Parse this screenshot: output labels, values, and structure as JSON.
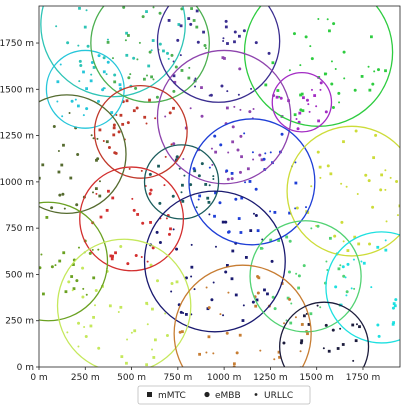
{
  "chart_data": {
    "type": "scatter",
    "title": "",
    "xlabel": "",
    "ylabel": "",
    "xlim": [
      0,
      1950
    ],
    "ylim": [
      0,
      1950
    ],
    "x_ticks": [
      {
        "value": 0,
        "label": "0 m"
      },
      {
        "value": 250,
        "label": "250 m"
      },
      {
        "value": 500,
        "label": "500 m"
      },
      {
        "value": 750,
        "label": "750 m"
      },
      {
        "value": 1000,
        "label": "1000 m"
      },
      {
        "value": 1250,
        "label": "1250 m"
      },
      {
        "value": 1500,
        "label": "1500 m"
      },
      {
        "value": 1750,
        "label": "1750 m"
      }
    ],
    "y_ticks": [
      {
        "value": 0,
        "label": "0 m"
      },
      {
        "value": 250,
        "label": "250 m"
      },
      {
        "value": 500,
        "label": "500 m"
      },
      {
        "value": 750,
        "label": "750 m"
      },
      {
        "value": 1000,
        "label": "1000 m"
      },
      {
        "value": 1250,
        "label": "1250 m"
      },
      {
        "value": 1500,
        "label": "1500 m"
      },
      {
        "value": 1750,
        "label": "1750 m"
      }
    ],
    "grid": false,
    "legend": {
      "placement": "bottom-center",
      "entries": [
        {
          "label": "mMTC",
          "marker": "square"
        },
        {
          "label": "eMBB",
          "marker": "circle"
        },
        {
          "label": "URLLC",
          "marker": "dot"
        }
      ]
    },
    "cells": [
      {
        "cx": 400,
        "cy": 1850,
        "r": 390,
        "color": "#2ec4b6"
      },
      {
        "cx": 250,
        "cy": 1500,
        "r": 210,
        "color": "#26c6da"
      },
      {
        "cx": 600,
        "cy": 1750,
        "r": 320,
        "color": "#4caf50"
      },
      {
        "cx": 970,
        "cy": 1760,
        "r": 330,
        "color": "#3a2d8f"
      },
      {
        "cx": 1510,
        "cy": 1700,
        "r": 400,
        "color": "#2ecc40"
      },
      {
        "cx": 1420,
        "cy": 1430,
        "r": 160,
        "color": "#a32cc4"
      },
      {
        "cx": 1000,
        "cy": 1350,
        "r": 360,
        "color": "#8e44ad"
      },
      {
        "cx": 550,
        "cy": 1270,
        "r": 250,
        "color": "#c0392b"
      },
      {
        "cx": 150,
        "cy": 1150,
        "r": 320,
        "color": "#556b2f"
      },
      {
        "cx": 770,
        "cy": 1000,
        "r": 200,
        "color": "#1a5c5c"
      },
      {
        "cx": 1150,
        "cy": 1000,
        "r": 340,
        "color": "#1f3fd6"
      },
      {
        "cx": 1690,
        "cy": 950,
        "r": 350,
        "color": "#cddc39"
      },
      {
        "cx": 500,
        "cy": 800,
        "r": 280,
        "color": "#d32f2f"
      },
      {
        "cx": 50,
        "cy": 570,
        "r": 320,
        "color": "#6aa121"
      },
      {
        "cx": 950,
        "cy": 570,
        "r": 380,
        "color": "#1a1a70"
      },
      {
        "cx": 1440,
        "cy": 490,
        "r": 300,
        "color": "#52d273"
      },
      {
        "cx": 1850,
        "cy": 430,
        "r": 300,
        "color": "#1ee0e0"
      },
      {
        "cx": 460,
        "cy": 330,
        "r": 360,
        "color": "#c5e85c"
      },
      {
        "cx": 1100,
        "cy": 180,
        "r": 370,
        "color": "#c77d33"
      },
      {
        "cx": 1540,
        "cy": 110,
        "r": 240,
        "color": "#1c1c3c"
      }
    ]
  },
  "legend_labels": {
    "mmtc": "mMTC",
    "embb": "eMBB",
    "urllc": "URLLC"
  }
}
